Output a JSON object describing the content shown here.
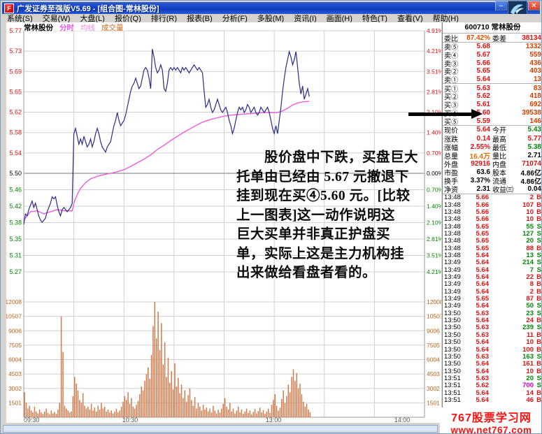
{
  "window": {
    "title": "广发证券至强版V5.69 - [组合图-常林股份]",
    "app_icon_glyph": "F",
    "minimize_label": "–",
    "close_label": "✕"
  },
  "menu": {
    "items": [
      "系统(S)",
      "交易(W)",
      "大盘(L)",
      "报价(Q)",
      "排行(R)",
      "报表(B)",
      "分析(F)",
      "多股(M)",
      "资讯(I)",
      "画面(H)",
      "特色(T)",
      "查看(V)",
      "帮助(H)"
    ]
  },
  "chart_header": {
    "stock": "常林股份",
    "tabs": [
      {
        "label": "分时",
        "color": "#f000f0"
      },
      {
        "label": "均线",
        "color": "#f787d8"
      },
      {
        "label": "成交量",
        "color": "#cf6a1e"
      }
    ]
  },
  "annotation": {
    "lines": [
      "　　股价盘中下跌，买盘巨大",
      "托单由已经由 5.67 元撤退下",
      "挂到现在买④5.60 元。[比较",
      "上一图表]这一动作说明这",
      "巨大买单并非真正护盘买",
      "单，实际上这是主力机构挂",
      "出来做给看盘者看的。"
    ]
  },
  "quote_panel": {
    "header": "600710 常林股份",
    "weibi_label": "委比",
    "weibi_value": "87.42%",
    "weicha_label": "委差",
    "weicha_value": "38134",
    "sell_rows": [
      [
        "卖⑤",
        "5.68",
        "1332"
      ],
      [
        "卖④",
        "5.67",
        "559"
      ],
      [
        "卖③",
        "5.66",
        "436"
      ],
      [
        "卖②",
        "5.65",
        "403"
      ],
      [
        "卖①",
        "5.64",
        "13"
      ]
    ],
    "buy_rows": [
      [
        "买①",
        "5.63",
        "83"
      ],
      [
        "买②",
        "5.62",
        "418"
      ],
      [
        "买③",
        "5.61",
        "692"
      ],
      [
        "买④",
        "5.60",
        "39538"
      ],
      [
        "买⑤",
        "5.59",
        "146"
      ]
    ],
    "detail_rows": [
      {
        "l1": "现价",
        "v1": "5.64",
        "c1": "c-up",
        "l2": "今开",
        "v2": "5.43",
        "c2": "c-dn"
      },
      {
        "l1": "涨跌",
        "v1": "0.14",
        "c1": "c-up",
        "l2": "最高",
        "v2": "5.77",
        "c2": "c-up"
      },
      {
        "l1": "涨幅",
        "v1": "2.55%",
        "c1": "c-up",
        "l2": "最低",
        "v2": "5.38",
        "c2": "c-dn"
      },
      {
        "l1": "总量",
        "v1": "16.4万",
        "c1": "c-am",
        "l2": "量比",
        "v2": "2.71",
        "c2": "c-bk"
      },
      {
        "l1": "外盘",
        "v1": "92916",
        "c1": "c-up",
        "l2": "内盘",
        "v2": "71074",
        "c2": "c-up"
      },
      {
        "l1": "市盈",
        "v1": "63.6",
        "c1": "c-bk",
        "l2": "股本",
        "v2": "4.86亿",
        "c2": "c-bk"
      },
      {
        "l1": "换手",
        "v1": "3.37%",
        "c1": "c-bk",
        "l2": "流通",
        "v2": "4.86亿",
        "c2": "c-bk"
      },
      {
        "l1": "净资",
        "v1": "2.31",
        "c1": "c-bk",
        "l2": "收益㈢",
        "v2": "0.04",
        "c2": "c-bk"
      }
    ],
    "ticks": [
      [
        "13:48",
        "5.66",
        "2",
        "B"
      ],
      [
        "13:48",
        "5.66",
        "107",
        "B"
      ],
      [
        "13:48",
        "5.66",
        "10",
        "B"
      ],
      [
        "13:48",
        "5.66",
        "10",
        "B"
      ],
      [
        "13:48",
        "5.65",
        "55",
        "S"
      ],
      [
        "13:48",
        "5.65",
        "127",
        "S"
      ],
      [
        "13:48",
        "5.65",
        "20",
        "S"
      ],
      [
        "13:48",
        "5.65",
        "88",
        "B"
      ],
      [
        "13:48",
        "5.64",
        "13",
        "S"
      ],
      [
        "13:49",
        "5.64",
        "214",
        "S"
      ],
      [
        "13:49",
        "5.64",
        "7",
        "S"
      ],
      [
        "13:49",
        "5.64",
        "22",
        "B"
      ],
      [
        "13:49",
        "5.64",
        "8",
        "B"
      ],
      [
        "13:49",
        "5.64",
        "2",
        "B"
      ],
      [
        "13:49",
        "5.65",
        "87",
        "B"
      ],
      [
        "13:49",
        "5.64",
        "50",
        "S"
      ],
      [
        "13:50",
        "5.63",
        "23",
        "S"
      ],
      [
        "13:50",
        "5.64",
        "24",
        "B"
      ],
      [
        "13:50",
        "5.63",
        "239",
        "S"
      ],
      [
        "13:50",
        "5.63",
        "11",
        "B"
      ],
      [
        "13:50",
        "5.64",
        "10",
        "B"
      ],
      [
        "13:50",
        "5.64",
        "100",
        "B"
      ],
      [
        "13:50",
        "5.63",
        "163",
        "S"
      ],
      [
        "13:50",
        "5.64",
        "161",
        "B"
      ],
      [
        "13:50",
        "5.64",
        "10",
        "B"
      ],
      [
        "13:51",
        "5.63",
        "20",
        "S"
      ],
      [
        "13:51",
        "5.62",
        "700",
        "S",
        "hl"
      ],
      [
        "13:51",
        "5.64",
        "14",
        "B"
      ],
      [
        "13:51",
        "5.64",
        "46",
        "B"
      ]
    ]
  },
  "watermark": {
    "line1": "767股票学习网",
    "line2": "www.net767.com"
  },
  "colors": {
    "up": "#e01010",
    "down": "#008800",
    "price_line": "#2b2b8a",
    "average_line": "#e85fd8",
    "volume_bar": "#d27a4a",
    "volume_label": "#c06018",
    "grid": "#d0d0d0",
    "grid_mid": "#777777"
  },
  "chart_data": {
    "type": "line",
    "title": "常林股份 分时走势图",
    "x": {
      "session_minutes": 240,
      "labels": [
        "09:30",
        "10:30",
        "13:00",
        "14:00"
      ],
      "data_end_minute": 171
    },
    "price_axis": {
      "prev_close": 5.5,
      "percent_step": 0.0385,
      "gridline_prices_above": [
        5.77,
        5.73,
        5.69,
        5.65,
        5.62,
        5.58,
        5.54
      ],
      "mid_price_label": "5.50",
      "gridline_prices_below": [
        5.46,
        5.42,
        5.38,
        5.35,
        5.31,
        5.27
      ],
      "percent_labels_above": [
        "4.91%",
        "4.21%",
        "3.51%",
        "2.81%",
        "2.10%",
        "1.40%",
        "0.70%"
      ],
      "mid_percent_label": "0.00%",
      "percent_labels_below": [
        "0.70%",
        "1.40%",
        "2.10%",
        "2.81%",
        "3.51%",
        "4.21%"
      ]
    },
    "volume_axis": {
      "gridline_values": [
        12008,
        10507,
        9006,
        7505,
        6004,
        4503,
        3002,
        1501
      ],
      "max": 12008
    },
    "series": [
      {
        "name": "price",
        "values": [
          5.38,
          5.405,
          5.4,
          5.415,
          5.425,
          5.435,
          5.42,
          5.43,
          5.415,
          5.4,
          5.39,
          5.385,
          5.39,
          5.395,
          5.41,
          5.42,
          5.43,
          5.445,
          5.44,
          5.445,
          5.425,
          5.41,
          5.4,
          5.415,
          5.42,
          5.415,
          5.41,
          5.415,
          5.42,
          5.43,
          5.575,
          5.585,
          5.57,
          5.555,
          5.565,
          5.555,
          5.57,
          5.56,
          5.55,
          5.555,
          5.565,
          5.55,
          5.56,
          5.575,
          5.585,
          5.575,
          5.56,
          5.55,
          5.545,
          5.54,
          5.55,
          5.555,
          5.56,
          5.575,
          5.59,
          5.6,
          5.615,
          5.6,
          5.59,
          5.595,
          5.6,
          5.61,
          5.625,
          5.64,
          5.655,
          5.665,
          5.67,
          5.68,
          5.67,
          5.66,
          5.665,
          5.68,
          5.695,
          5.7,
          5.695,
          5.68,
          5.66,
          5.735,
          5.72,
          5.7,
          5.69,
          5.695,
          5.705,
          5.695,
          5.66,
          5.655,
          5.67,
          5.695,
          5.7,
          5.695,
          5.7,
          5.695,
          5.7,
          5.695,
          5.69,
          5.7,
          5.695,
          5.7,
          5.695,
          5.69,
          5.695,
          5.7,
          5.705,
          5.7,
          5.695,
          5.7,
          5.695,
          5.69,
          5.655,
          5.625,
          5.63,
          5.64,
          5.625,
          5.615,
          5.62,
          5.63,
          5.64,
          5.63,
          5.62,
          5.615,
          5.62,
          5.625,
          5.615,
          5.6,
          5.59,
          5.575,
          5.585,
          5.6,
          5.615,
          5.625,
          5.62,
          5.625,
          5.615,
          5.62,
          5.63,
          5.625,
          5.615,
          5.62,
          5.625,
          5.615,
          5.61,
          5.615,
          5.625,
          5.62,
          5.615,
          5.62,
          5.625,
          5.615,
          5.6,
          5.585,
          5.575,
          5.59,
          5.575,
          5.6,
          5.625,
          5.655,
          5.68,
          5.7,
          5.715,
          5.73,
          5.72,
          5.705,
          5.715,
          5.73,
          5.7,
          5.67,
          5.65,
          5.665,
          5.64,
          5.65,
          5.66,
          5.645
        ]
      },
      {
        "name": "average",
        "points": [
          [
            0,
            5.39
          ],
          [
            4,
            5.41
          ],
          [
            8,
            5.412
          ],
          [
            12,
            5.405
          ],
          [
            16,
            5.41
          ],
          [
            20,
            5.415
          ],
          [
            24,
            5.412
          ],
          [
            29,
            5.412
          ],
          [
            30,
            5.43
          ],
          [
            32,
            5.45
          ],
          [
            34,
            5.465
          ],
          [
            37,
            5.478
          ],
          [
            40,
            5.487
          ],
          [
            44,
            5.493
          ],
          [
            48,
            5.497
          ],
          [
            52,
            5.5
          ],
          [
            56,
            5.503
          ],
          [
            60,
            5.507
          ],
          [
            64,
            5.513
          ],
          [
            68,
            5.52
          ],
          [
            72,
            5.527
          ],
          [
            76,
            5.535
          ],
          [
            80,
            5.545
          ],
          [
            84,
            5.553
          ],
          [
            88,
            5.562
          ],
          [
            92,
            5.57
          ],
          [
            96,
            5.578
          ],
          [
            100,
            5.585
          ],
          [
            104,
            5.592
          ],
          [
            108,
            5.598
          ],
          [
            112,
            5.602
          ],
          [
            116,
            5.605
          ],
          [
            120,
            5.608
          ],
          [
            124,
            5.61
          ],
          [
            128,
            5.611
          ],
          [
            132,
            5.612
          ],
          [
            136,
            5.613
          ],
          [
            140,
            5.614
          ],
          [
            144,
            5.615
          ],
          [
            148,
            5.615
          ],
          [
            152,
            5.615
          ],
          [
            155,
            5.618
          ],
          [
            158,
            5.623
          ],
          [
            161,
            5.629
          ],
          [
            164,
            5.633
          ],
          [
            167,
            5.635
          ],
          [
            171,
            5.636
          ]
        ]
      }
    ],
    "volume": {
      "values": [
        2600,
        1500,
        900,
        1200,
        700,
        500,
        1100,
        600,
        400,
        800,
        500,
        350,
        600,
        900,
        450,
        300,
        700,
        400,
        550,
        350,
        800,
        1500,
        10500,
        6800,
        1200,
        900,
        700,
        500,
        600,
        2200,
        4200,
        3500,
        2800,
        1800,
        1500,
        2500,
        1200,
        900,
        1100,
        800,
        1400,
        700,
        1000,
        600,
        1200,
        800,
        1500,
        900,
        1100,
        600,
        800,
        500,
        700,
        400,
        600,
        900,
        500,
        700,
        1100,
        1600,
        2200,
        1800,
        2600,
        1400,
        2000,
        1100,
        900,
        1300,
        1700,
        2400,
        3200,
        2800,
        3800,
        4500,
        5200,
        4000,
        6500,
        9500,
        12008,
        8200,
        11000,
        7000,
        9800,
        5500,
        7800,
        4200,
        6200,
        3600,
        4800,
        2900,
        5600,
        3200,
        4100,
        2500,
        3400,
        2000,
        2800,
        1600,
        2300,
        3000,
        1800,
        1200,
        2100,
        900,
        1500,
        1100,
        700,
        1300,
        800,
        1000,
        600,
        900,
        500,
        1200,
        700,
        400,
        800,
        500,
        900,
        1400,
        2000,
        1100,
        800,
        1500,
        600,
        900,
        400,
        700,
        1100,
        500,
        800,
        350,
        600,
        900,
        450,
        700,
        300,
        550,
        850,
        400,
        650,
        1000,
        500,
        750,
        350,
        600,
        900,
        450,
        1300,
        1800,
        2400,
        1200,
        700,
        1000,
        1900,
        2800,
        1500,
        2200,
        3400,
        2600,
        4200,
        5000,
        3800,
        4600,
        3000,
        3500,
        2400,
        1600,
        1100,
        1400,
        800,
        500
      ]
    }
  }
}
